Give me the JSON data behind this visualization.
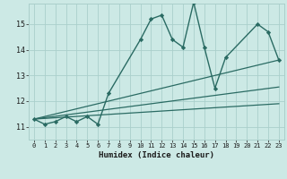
{
  "xlabel": "Humidex (Indice chaleur)",
  "xlim": [
    -0.5,
    23.5
  ],
  "ylim": [
    10.5,
    15.8
  ],
  "xticks": [
    0,
    1,
    2,
    3,
    4,
    5,
    6,
    7,
    8,
    9,
    10,
    11,
    12,
    13,
    14,
    15,
    16,
    17,
    18,
    19,
    20,
    21,
    22,
    23
  ],
  "yticks": [
    11,
    12,
    13,
    14,
    15
  ],
  "background_color": "#cce9e5",
  "grid_color": "#aacfcb",
  "line_color": "#2a6b63",
  "main_line": {
    "x": [
      0,
      1,
      2,
      3,
      4,
      5,
      6,
      7,
      10,
      11,
      12,
      13,
      14,
      15,
      16,
      17,
      18,
      21,
      22,
      23
    ],
    "y": [
      11.3,
      11.1,
      11.2,
      11.4,
      11.2,
      11.4,
      11.1,
      12.3,
      14.4,
      15.2,
      15.35,
      14.4,
      14.1,
      15.85,
      14.1,
      12.5,
      13.7,
      15.0,
      14.7,
      13.6
    ]
  },
  "trend_lines": [
    {
      "x": [
        0,
        23
      ],
      "y": [
        11.3,
        13.6
      ]
    },
    {
      "x": [
        0,
        23
      ],
      "y": [
        11.3,
        12.55
      ]
    },
    {
      "x": [
        0,
        23
      ],
      "y": [
        11.3,
        11.9
      ]
    }
  ]
}
